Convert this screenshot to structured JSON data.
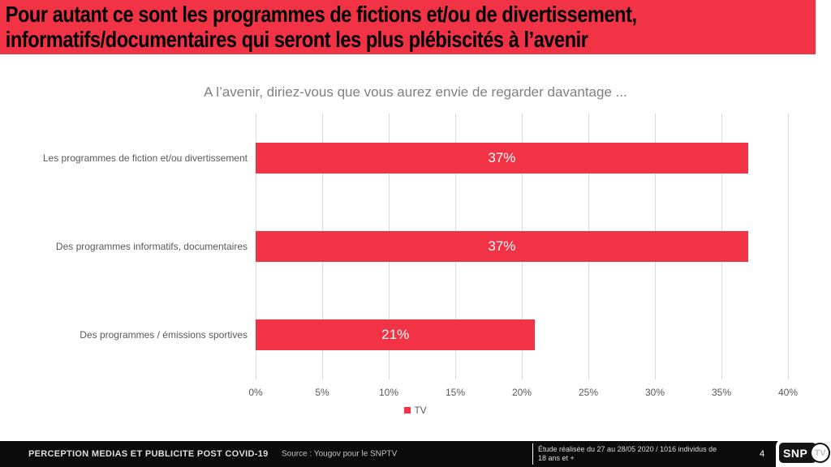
{
  "accent_red": "#F23345",
  "header": {
    "bg_color": "#F23345",
    "title_line1": "Pour autant ce sont les programmes de fictions et/ou de divertissement,",
    "title_line2": "informatifs/documentaires qui seront les plus plébiscités à l’avenir"
  },
  "chart_data": {
    "type": "bar",
    "orientation": "horizontal",
    "title": "A l’avenir, diriez-vous que vous aurez envie de regarder davantage ...",
    "categories": [
      "Les programmes de fiction et/ou divertissement",
      "Des programmes informatifs, documentaires",
      "Des programmes / émissions sportives"
    ],
    "series": [
      {
        "name": "TV",
        "color": "#F23345",
        "values": [
          37,
          37,
          21
        ]
      }
    ],
    "data_labels": [
      "37%",
      "37%",
      "21%"
    ],
    "x_ticks": [
      "0%",
      "5%",
      "10%",
      "15%",
      "20%",
      "25%",
      "30%",
      "35%",
      "40%"
    ],
    "xlim": [
      0,
      40
    ],
    "grid": "vertical-gridlines",
    "gridline_color": "#DADADA",
    "legend_position": "bottom-center"
  },
  "footer": {
    "left_title": "PERCEPTION MEDIAS ET PUBLICITE POST COVID-19",
    "source": "Source : Yougov pour le SNPTV",
    "study_note_line1": "Étude réalisée du 27 au 28/05 2020 / 1016 individus de",
    "study_note_line2": "18 ans et +",
    "page_number": "4",
    "logo": {
      "snp": "SNP",
      "tv": "TV"
    }
  }
}
